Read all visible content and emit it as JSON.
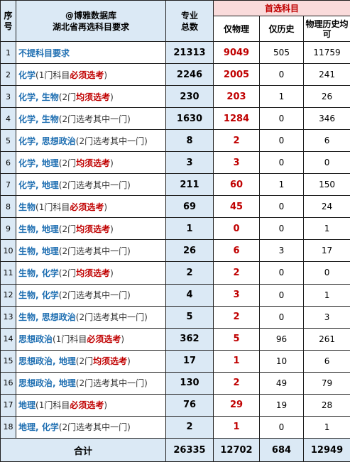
{
  "header": {
    "seq_label": "序号",
    "title_line1": "@博雅数据库",
    "title_line2": "湖北省再选科目要求",
    "total_label": "专业总数",
    "first_choice_label": "首选科目",
    "physics_only": "仅物理",
    "history_only": "仅历史",
    "either_label": "物理历史均可"
  },
  "rows": [
    {
      "seq": "1",
      "subjects": "不提科目要求",
      "paren_open": "",
      "count_text": "",
      "req": "",
      "paren_close": "",
      "total": "21313",
      "physics": "9049",
      "history": "505",
      "either": "11759"
    },
    {
      "seq": "2",
      "subjects": "化学",
      "paren_open": "(",
      "count_text": "1门科目",
      "req": "必须选考",
      "paren_close": ")",
      "total": "2246",
      "physics": "2005",
      "history": "0",
      "either": "241"
    },
    {
      "seq": "3",
      "subjects": "化学, 生物",
      "paren_open": "(",
      "count_text": "2门",
      "req": "均须选考",
      "paren_close": ")",
      "total": "230",
      "physics": "203",
      "history": "1",
      "either": "26"
    },
    {
      "seq": "4",
      "subjects": "化学, 生物",
      "paren_open": "(",
      "count_text": "2门选考其中一门",
      "req": "",
      "paren_close": ")",
      "total": "1630",
      "physics": "1284",
      "history": "0",
      "either": "346"
    },
    {
      "seq": "5",
      "subjects": "化学, 思想政治",
      "paren_open": "(",
      "count_text": "2门选考其中一门",
      "req": "",
      "paren_close": ")",
      "total": "8",
      "physics": "2",
      "history": "0",
      "either": "6"
    },
    {
      "seq": "6",
      "subjects": "化学, 地理",
      "paren_open": "(",
      "count_text": "2门",
      "req": "均须选考",
      "paren_close": ")",
      "total": "3",
      "physics": "3",
      "history": "0",
      "either": "0"
    },
    {
      "seq": "7",
      "subjects": "化学, 地理",
      "paren_open": "(",
      "count_text": "2门选考其中一门",
      "req": "",
      "paren_close": ")",
      "total": "211",
      "physics": "60",
      "history": "1",
      "either": "150"
    },
    {
      "seq": "8",
      "subjects": "生物",
      "paren_open": "(",
      "count_text": "1门科目",
      "req": "必须选考",
      "paren_close": ")",
      "total": "69",
      "physics": "45",
      "history": "0",
      "either": "24"
    },
    {
      "seq": "9",
      "subjects": "生物, 地理",
      "paren_open": "(",
      "count_text": "2门",
      "req": "均须选考",
      "paren_close": ")",
      "total": "1",
      "physics": "0",
      "history": "0",
      "either": "1"
    },
    {
      "seq": "10",
      "subjects": "生物, 地理",
      "paren_open": "(",
      "count_text": "2门选考其中一门",
      "req": "",
      "paren_close": ")",
      "total": "26",
      "physics": "6",
      "history": "3",
      "either": "17"
    },
    {
      "seq": "11",
      "subjects": "生物, 化学",
      "paren_open": "(",
      "count_text": "2门",
      "req": "均须选考",
      "paren_close": ")",
      "total": "2",
      "physics": "2",
      "history": "0",
      "either": "0"
    },
    {
      "seq": "12",
      "subjects": "生物, 化学",
      "paren_open": "(",
      "count_text": "2门选考其中一门",
      "req": "",
      "paren_close": ")",
      "total": "4",
      "physics": "3",
      "history": "0",
      "either": "1"
    },
    {
      "seq": "13",
      "subjects": "生物, 思想政治",
      "paren_open": "(",
      "count_text": "2门选考其中一门",
      "req": "",
      "paren_close": ")",
      "total": "5",
      "physics": "2",
      "history": "0",
      "either": "3"
    },
    {
      "seq": "14",
      "subjects": "思想政治",
      "paren_open": "(",
      "count_text": "1门科目",
      "req": "必须选考",
      "paren_close": ")",
      "total": "362",
      "physics": "5",
      "history": "96",
      "either": "261"
    },
    {
      "seq": "15",
      "subjects": "思想政治, 地理",
      "paren_open": "(",
      "count_text": "2门",
      "req": "均须选考",
      "paren_close": ")",
      "total": "17",
      "physics": "1",
      "history": "10",
      "either": "6"
    },
    {
      "seq": "16",
      "subjects": "思想政治, 地理",
      "paren_open": "(",
      "count_text": "2门选考其中一门",
      "req": "",
      "paren_close": ")",
      "total": "130",
      "physics": "2",
      "history": "49",
      "either": "79"
    },
    {
      "seq": "17",
      "subjects": "地理",
      "paren_open": "(",
      "count_text": "1门科目",
      "req": "必须选考",
      "paren_close": ")",
      "total": "76",
      "physics": "29",
      "history": "19",
      "either": "28"
    },
    {
      "seq": "18",
      "subjects": "地理, 化学",
      "paren_open": "(",
      "count_text": "2门选考其中一门",
      "req": "",
      "paren_close": ")",
      "total": "2",
      "physics": "1",
      "history": "0",
      "either": "1"
    }
  ],
  "footer": {
    "label": "合计",
    "total": "26335",
    "physics": "12702",
    "history": "684",
    "either": "12949"
  },
  "colors": {
    "header_bg": "#dbe9f5",
    "first_choice_bg": "#fadbdb",
    "red": "#c00000",
    "subject_blue": "#1f6fb2"
  }
}
